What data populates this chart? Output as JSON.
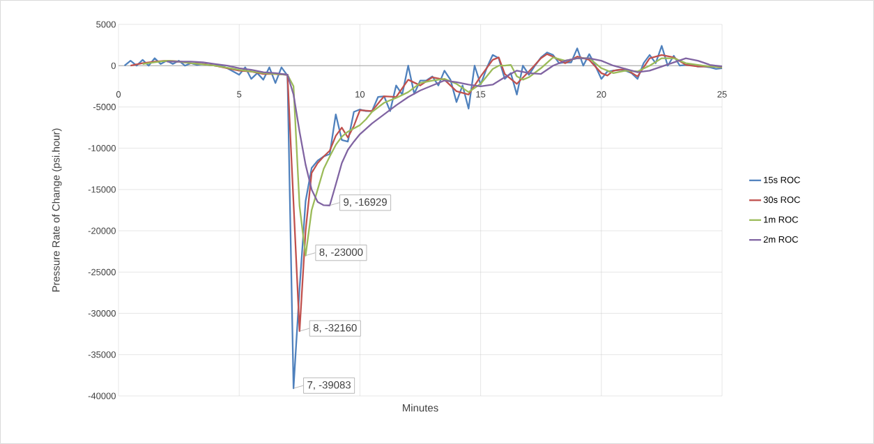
{
  "chart_data": {
    "type": "line",
    "xlabel": "Minutes",
    "ylabel": "Pressure Rate of Change (psi.hour)",
    "xlim": [
      0,
      25
    ],
    "xticks": [
      0,
      5,
      10,
      15,
      20,
      25
    ],
    "ylim": [
      -40000,
      5000
    ],
    "yticks": [
      -40000,
      -35000,
      -30000,
      -25000,
      -20000,
      -15000,
      -10000,
      -5000,
      0,
      5000
    ],
    "grid": true,
    "legend": "right",
    "series": [
      {
        "name": "15s ROC",
        "color": "#4f81bd",
        "x": [
          0.25,
          0.5,
          0.75,
          1,
          1.25,
          1.5,
          1.75,
          2,
          2.25,
          2.5,
          2.75,
          3,
          3.25,
          3.5,
          3.75,
          4,
          4.25,
          4.5,
          4.75,
          5,
          5.25,
          5.5,
          5.75,
          6,
          6.25,
          6.5,
          6.75,
          7,
          7.25,
          7.5,
          7.75,
          8,
          8.25,
          8.5,
          8.75,
          9,
          9.25,
          9.5,
          9.75,
          10,
          10.25,
          10.5,
          10.75,
          11,
          11.25,
          11.5,
          11.75,
          12,
          12.25,
          12.5,
          12.75,
          13,
          13.25,
          13.5,
          13.75,
          14,
          14.25,
          14.5,
          14.75,
          15,
          15.25,
          15.5,
          15.75,
          16,
          16.25,
          16.5,
          16.75,
          17,
          17.25,
          17.5,
          17.75,
          18,
          18.25,
          18.5,
          18.75,
          19,
          19.25,
          19.5,
          19.75,
          20,
          20.25,
          20.5,
          20.75,
          21,
          21.25,
          21.5,
          21.75,
          22,
          22.25,
          22.5,
          22.75,
          23,
          23.25,
          23.5,
          23.75,
          24,
          24.25,
          24.5,
          24.75,
          25
        ],
        "values": [
          0,
          600,
          0,
          700,
          0,
          900,
          200,
          600,
          200,
          600,
          0,
          300,
          100,
          200,
          100,
          0,
          0,
          -300,
          -700,
          -1100,
          -200,
          -1600,
          -900,
          -1700,
          -200,
          -2100,
          -200,
          -1200,
          -39083,
          -27000,
          -16400,
          -12400,
          -11500,
          -11000,
          -10700,
          -5900,
          -9000,
          -9200,
          -5600,
          -5300,
          -5500,
          -5500,
          -3800,
          -3700,
          -5500,
          -2400,
          -3500,
          0,
          -3400,
          -1800,
          -1800,
          -1300,
          -2400,
          -600,
          -1700,
          -4400,
          -2400,
          -5200,
          0,
          -2300,
          -300,
          1300,
          900,
          -1600,
          -900,
          -3500,
          0,
          -1100,
          0,
          1000,
          1600,
          1300,
          300,
          400,
          400,
          2100,
          0,
          1400,
          0,
          -1600,
          -700,
          -600,
          -500,
          -600,
          -900,
          -1600,
          300,
          1300,
          300,
          2400,
          0,
          1200,
          0,
          100,
          100,
          -100,
          -100,
          -200,
          -400,
          -300
        ]
      },
      {
        "name": "30s ROC",
        "color": "#c0504d",
        "x": [
          0.5,
          1,
          1.5,
          2,
          2.5,
          3,
          3.5,
          4,
          4.5,
          5,
          5.5,
          6,
          6.5,
          7,
          7.5,
          7.75,
          8,
          8.25,
          8.5,
          8.75,
          9,
          9.25,
          9.5,
          9.75,
          10,
          10.5,
          11,
          11.5,
          12,
          12.5,
          13,
          13.5,
          14,
          14.5,
          15,
          15.5,
          15.75,
          16,
          16.5,
          17,
          17.5,
          17.75,
          18,
          18.5,
          19,
          19.5,
          20,
          20.25,
          20.5,
          21,
          21.5,
          22,
          22.5,
          23,
          23.5,
          24,
          24.5,
          25
        ],
        "values": [
          0,
          300,
          500,
          600,
          500,
          300,
          200,
          0,
          -300,
          -600,
          -700,
          -1000,
          -1000,
          -1100,
          -32160,
          -20000,
          -13000,
          -11800,
          -11000,
          -10300,
          -8500,
          -7500,
          -8700,
          -7300,
          -5400,
          -5500,
          -3700,
          -3800,
          -1700,
          -2400,
          -1400,
          -1700,
          -3100,
          -3500,
          -1300,
          700,
          1000,
          -1000,
          -2200,
          -700,
          900,
          1400,
          1100,
          300,
          1100,
          700,
          -900,
          -1200,
          -600,
          -400,
          -1300,
          900,
          1300,
          1000,
          100,
          -100,
          -100,
          -200
        ]
      },
      {
        "name": "1m ROC",
        "color": "#9bbb59",
        "x": [
          1,
          1.5,
          2,
          2.5,
          3,
          4,
          5,
          6,
          7,
          7.25,
          7.5,
          7.75,
          8,
          8.25,
          8.5,
          8.75,
          9,
          9.25,
          9.5,
          9.75,
          10,
          10.25,
          10.5,
          11,
          11.5,
          12,
          12.5,
          13,
          13.5,
          14,
          14.5,
          15,
          15.5,
          15.75,
          16,
          16.25,
          16.5,
          16.75,
          17,
          17.5,
          18,
          18.5,
          19,
          19.5,
          20,
          20.5,
          21,
          21.5,
          22,
          22.5,
          23,
          23.5,
          24,
          24.5,
          25
        ],
        "values": [
          200,
          400,
          600,
          500,
          300,
          0,
          -500,
          -900,
          -1100,
          -2500,
          -17000,
          -23000,
          -17500,
          -15000,
          -12500,
          -11000,
          -9600,
          -8600,
          -8000,
          -7600,
          -7200,
          -6500,
          -5600,
          -4500,
          -3900,
          -3200,
          -2100,
          -1800,
          -1600,
          -2200,
          -3200,
          -2200,
          -400,
          0,
          0,
          100,
          -1300,
          -1700,
          -1400,
          -300,
          1000,
          600,
          900,
          900,
          -300,
          -900,
          -600,
          -700,
          0,
          900,
          900,
          300,
          100,
          -100,
          -200
        ]
      },
      {
        "name": "2m ROC",
        "color": "#8064a2",
        "x": [
          2,
          2.5,
          3,
          3.5,
          4,
          4.5,
          5,
          5.5,
          6,
          6.5,
          7,
          7.25,
          7.5,
          7.75,
          8,
          8.25,
          8.5,
          8.75,
          9,
          9.25,
          9.5,
          9.75,
          10,
          10.5,
          11,
          11.5,
          12,
          12.5,
          13,
          13.5,
          14,
          14.5,
          15,
          15.5,
          16,
          16.5,
          17,
          17.5,
          18,
          18.5,
          19,
          19.5,
          20,
          20.5,
          21,
          21.5,
          22,
          22.5,
          23,
          23.5,
          24,
          24.5,
          25
        ],
        "values": [
          500,
          500,
          500,
          400,
          200,
          0,
          -300,
          -500,
          -800,
          -900,
          -1100,
          -3500,
          -8000,
          -12000,
          -15000,
          -16500,
          -16900,
          -16929,
          -14400,
          -11800,
          -10200,
          -9200,
          -8300,
          -7000,
          -5900,
          -4800,
          -3800,
          -3000,
          -2400,
          -1800,
          -2000,
          -2300,
          -2500,
          -2300,
          -1400,
          -600,
          -900,
          -1000,
          0,
          600,
          900,
          900,
          600,
          0,
          -400,
          -800,
          -600,
          -100,
          400,
          900,
          600,
          100,
          -100
        ]
      }
    ],
    "annotations": [
      {
        "text": "7, -39083",
        "x": 7.25,
        "y": -39083
      },
      {
        "text": "8, -32160",
        "x": 7.5,
        "y": -32160
      },
      {
        "text": "8, -23000",
        "x": 7.75,
        "y": -23000
      },
      {
        "text": "9, -16929",
        "x": 8.75,
        "y": -16929
      }
    ]
  }
}
